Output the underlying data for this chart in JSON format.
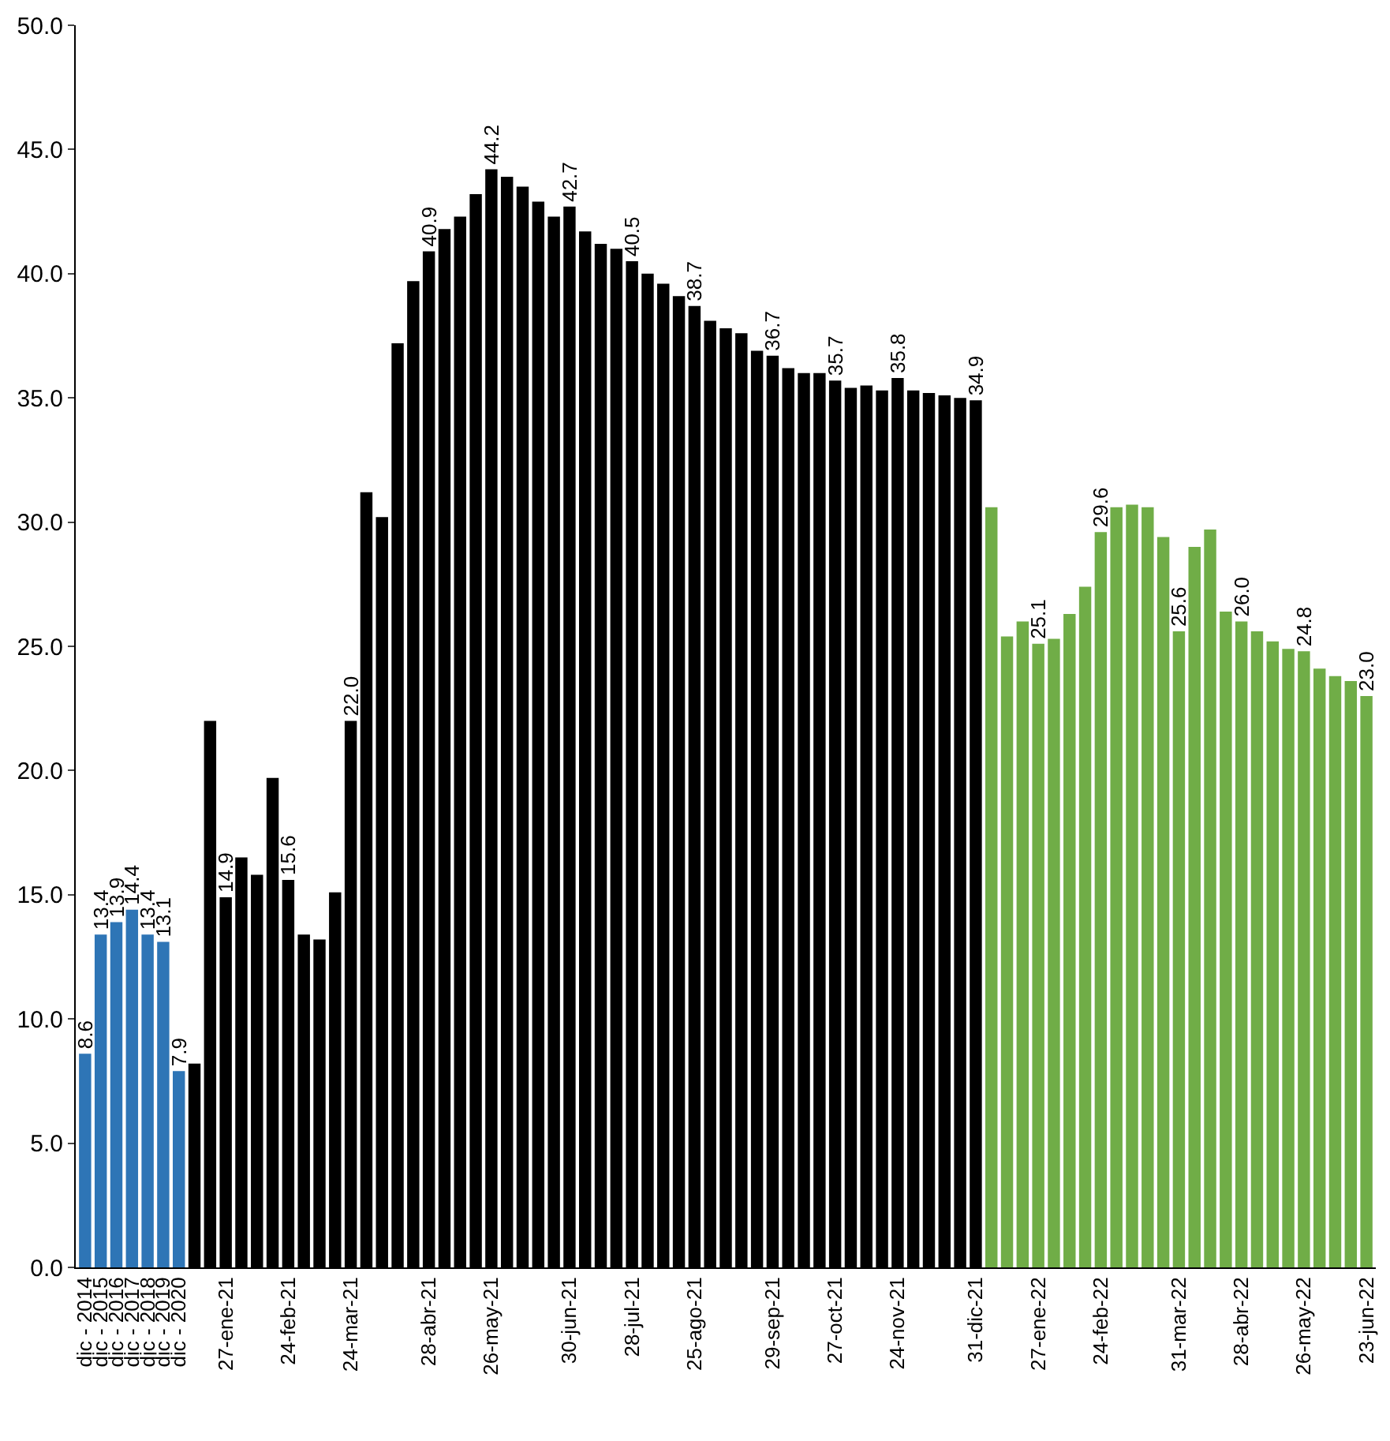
{
  "chart_data": {
    "type": "bar",
    "categories": [
      "dic - 2014",
      "dic - 2015",
      "dic - 2016",
      "dic - 2017",
      "dic - 2018",
      "dic - 2019",
      "dic - 2020",
      null,
      null,
      "27-ene-21",
      null,
      null,
      null,
      "24-feb-21",
      null,
      null,
      null,
      "24-mar-21",
      null,
      null,
      null,
      null,
      "28-abr-21",
      null,
      null,
      null,
      "26-may-21",
      null,
      null,
      null,
      null,
      "30-jun-21",
      null,
      null,
      null,
      "28-jul-21",
      null,
      null,
      null,
      "25-ago-21",
      null,
      null,
      null,
      null,
      "29-sep-21",
      null,
      null,
      null,
      "27-oct-21",
      null,
      null,
      null,
      "24-nov-21",
      null,
      null,
      null,
      null,
      "31-dic-21",
      null,
      null,
      null,
      "27-ene-22",
      null,
      null,
      null,
      "24-feb-22",
      null,
      null,
      null,
      null,
      "31-mar-22",
      null,
      null,
      null,
      "28-abr-22",
      null,
      null,
      null,
      "26-may-22",
      null,
      null,
      null,
      "23-jun-22"
    ],
    "series": [
      {
        "color": "#2e75b6",
        "values": [
          8.6,
          13.4,
          13.9,
          14.4,
          13.4,
          13.1,
          7.9,
          null,
          null,
          null,
          null,
          null,
          null,
          null,
          null,
          null,
          null,
          null,
          null,
          null,
          null,
          null,
          null,
          null,
          null,
          null,
          null,
          null,
          null,
          null,
          null,
          null,
          null,
          null,
          null,
          null,
          null,
          null,
          null,
          null,
          null,
          null,
          null,
          null,
          null,
          null,
          null,
          null,
          null,
          null,
          null,
          null,
          null,
          null,
          null,
          null,
          null,
          null,
          null,
          null,
          null,
          null,
          null,
          null,
          null,
          null,
          null,
          null,
          null,
          null,
          null,
          null,
          null,
          null,
          null,
          null,
          null,
          null,
          null,
          null,
          null,
          null,
          null
        ],
        "value_labels": [
          "8.6",
          "13.4",
          "13.9",
          "14.4",
          "13.4",
          "13.1",
          "7.9",
          null,
          null,
          null,
          null,
          null,
          null,
          null,
          null,
          null,
          null,
          null,
          null,
          null,
          null,
          null,
          null,
          null,
          null,
          null,
          null,
          null,
          null,
          null,
          null,
          null,
          null,
          null,
          null,
          null,
          null,
          null,
          null,
          null,
          null,
          null,
          null,
          null,
          null,
          null,
          null,
          null,
          null,
          null,
          null,
          null,
          null,
          null,
          null,
          null,
          null,
          null,
          null,
          null,
          null,
          null,
          null,
          null,
          null,
          null,
          null,
          null,
          null,
          null,
          null,
          null,
          null,
          null,
          null,
          null,
          null,
          null,
          null,
          null,
          null,
          null,
          null
        ]
      },
      {
        "color": "#000000",
        "values": [
          null,
          null,
          null,
          null,
          null,
          null,
          null,
          8.2,
          22.0,
          14.9,
          16.5,
          15.8,
          19.7,
          15.6,
          13.4,
          13.2,
          15.1,
          22.0,
          31.2,
          30.2,
          37.2,
          39.7,
          40.9,
          41.8,
          42.3,
          43.2,
          44.2,
          43.9,
          43.5,
          42.9,
          42.3,
          42.7,
          41.7,
          41.2,
          41.0,
          40.5,
          40.0,
          39.6,
          39.1,
          38.7,
          38.1,
          37.8,
          37.6,
          36.9,
          36.7,
          36.2,
          36.0,
          36.0,
          35.7,
          35.4,
          35.5,
          35.3,
          35.8,
          35.3,
          35.2,
          35.1,
          35.0,
          34.9,
          null,
          null,
          null,
          null,
          null,
          null,
          null,
          null,
          null,
          null,
          null,
          null,
          null,
          null,
          null,
          null,
          null,
          null,
          null,
          null,
          null,
          null,
          null,
          null,
          null
        ],
        "value_labels": [
          null,
          null,
          null,
          null,
          null,
          null,
          null,
          null,
          null,
          "14.9",
          null,
          null,
          null,
          "15.6",
          null,
          null,
          null,
          "22.0",
          null,
          null,
          null,
          null,
          "40.9",
          null,
          null,
          null,
          "44.2",
          null,
          null,
          null,
          null,
          "42.7",
          null,
          null,
          null,
          "40.5",
          null,
          null,
          null,
          "38.7",
          null,
          null,
          null,
          null,
          "36.7",
          null,
          null,
          null,
          "35.7",
          null,
          null,
          null,
          "35.8",
          null,
          null,
          null,
          null,
          "34.9",
          null,
          null,
          null,
          null,
          null,
          null,
          null,
          null,
          null,
          null,
          null,
          null,
          null,
          null,
          null,
          null,
          null,
          null,
          null,
          null,
          null,
          null,
          null,
          null,
          null
        ]
      },
      {
        "color": "#70ad47",
        "values": [
          null,
          null,
          null,
          null,
          null,
          null,
          null,
          null,
          null,
          null,
          null,
          null,
          null,
          null,
          null,
          null,
          null,
          null,
          null,
          null,
          null,
          null,
          null,
          null,
          null,
          null,
          null,
          null,
          null,
          null,
          null,
          null,
          null,
          null,
          null,
          null,
          null,
          null,
          null,
          null,
          null,
          null,
          null,
          null,
          null,
          null,
          null,
          null,
          null,
          null,
          null,
          null,
          null,
          null,
          null,
          null,
          null,
          null,
          30.6,
          25.4,
          26.0,
          25.1,
          25.3,
          26.3,
          27.4,
          29.6,
          30.6,
          30.7,
          30.6,
          29.4,
          25.6,
          29.0,
          29.7,
          26.4,
          26.0,
          25.6,
          25.2,
          24.9,
          24.8,
          24.1,
          23.8,
          23.6,
          23.0
        ],
        "value_labels": [
          null,
          null,
          null,
          null,
          null,
          null,
          null,
          null,
          null,
          null,
          null,
          null,
          null,
          null,
          null,
          null,
          null,
          null,
          null,
          null,
          null,
          null,
          null,
          null,
          null,
          null,
          null,
          null,
          null,
          null,
          null,
          null,
          null,
          null,
          null,
          null,
          null,
          null,
          null,
          null,
          null,
          null,
          null,
          null,
          null,
          null,
          null,
          null,
          null,
          null,
          null,
          null,
          null,
          null,
          null,
          null,
          null,
          null,
          null,
          null,
          null,
          "25.1",
          null,
          null,
          null,
          "29.6",
          null,
          null,
          null,
          null,
          "25.6",
          null,
          null,
          null,
          "26.0",
          null,
          null,
          null,
          "24.8",
          null,
          null,
          null,
          "23.0"
        ]
      }
    ],
    "ylim": [
      0,
      50
    ],
    "yticks": [
      {
        "value": 0,
        "label": "0.0"
      },
      {
        "value": 5,
        "label": "5.0"
      },
      {
        "value": 10,
        "label": "10.0"
      },
      {
        "value": 15,
        "label": "15.0"
      },
      {
        "value": 20,
        "label": "20.0"
      },
      {
        "value": 25,
        "label": "25.0"
      },
      {
        "value": 30,
        "label": "30.0"
      },
      {
        "value": 35,
        "label": "35.0"
      },
      {
        "value": 40,
        "label": "40.0"
      },
      {
        "value": 45,
        "label": "45.0"
      },
      {
        "value": 50,
        "label": "50.0"
      }
    ]
  }
}
